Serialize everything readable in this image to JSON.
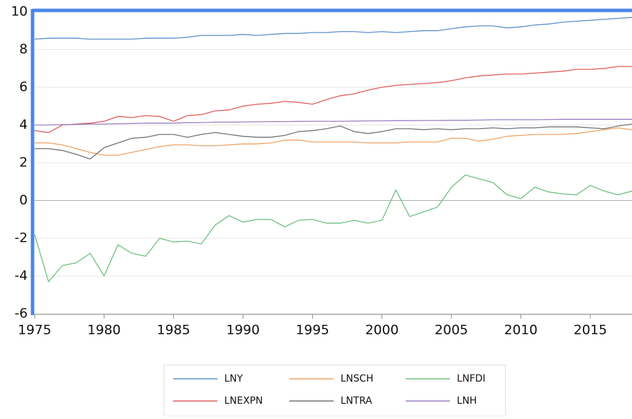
{
  "chart_data": {
    "type": "line",
    "x": [
      1975,
      1976,
      1977,
      1978,
      1979,
      1980,
      1981,
      1982,
      1983,
      1984,
      1985,
      1986,
      1987,
      1988,
      1989,
      1990,
      1991,
      1992,
      1993,
      1994,
      1995,
      1996,
      1997,
      1998,
      1999,
      2000,
      2001,
      2002,
      2003,
      2004,
      2005,
      2006,
      2007,
      2008,
      2009,
      2010,
      2011,
      2012,
      2013,
      2014,
      2015,
      2016,
      2017,
      2018
    ],
    "xlim": [
      1975,
      2018
    ],
    "xticks": [
      1975,
      1980,
      1985,
      1990,
      1995,
      2000,
      2005,
      2010,
      2015
    ],
    "ylim": [
      -6,
      10
    ],
    "yticks": [
      -6,
      -4,
      -2,
      0,
      2,
      4,
      6,
      8,
      10
    ],
    "grid": true,
    "legend": "bottom",
    "series": [
      {
        "name": "LNY",
        "color": "#5b8ec9",
        "values": [
          8.55,
          8.6,
          8.6,
          8.6,
          8.55,
          8.55,
          8.55,
          8.55,
          8.6,
          8.6,
          8.6,
          8.65,
          8.75,
          8.75,
          8.75,
          8.8,
          8.75,
          8.8,
          8.85,
          8.85,
          8.9,
          8.9,
          8.95,
          8.95,
          8.9,
          8.95,
          8.9,
          8.95,
          9.0,
          9.0,
          9.1,
          9.2,
          9.25,
          9.25,
          9.15,
          9.2,
          9.3,
          9.35,
          9.45,
          9.5,
          9.55,
          9.6,
          9.65,
          9.7
        ]
      },
      {
        "name": "LNSCH",
        "color": "#f0a060",
        "values": [
          3.05,
          3.05,
          2.95,
          2.75,
          2.55,
          2.4,
          2.4,
          2.55,
          2.7,
          2.85,
          2.95,
          2.95,
          2.9,
          2.9,
          2.95,
          3.0,
          3.0,
          3.05,
          3.2,
          3.2,
          3.1,
          3.1,
          3.1,
          3.1,
          3.05,
          3.05,
          3.05,
          3.1,
          3.1,
          3.1,
          3.3,
          3.3,
          3.15,
          3.25,
          3.4,
          3.45,
          3.5,
          3.5,
          3.5,
          3.55,
          3.65,
          3.75,
          3.85,
          3.75
        ]
      },
      {
        "name": "LNFDI",
        "color": "#6cbf7f",
        "values": [
          -1.8,
          -4.3,
          -3.45,
          -3.3,
          -2.8,
          -4.0,
          -2.35,
          -2.8,
          -2.95,
          -2.0,
          -2.2,
          -2.15,
          -2.3,
          -1.3,
          -0.8,
          -1.15,
          -1.0,
          -1.0,
          -1.4,
          -1.05,
          -1.0,
          -1.2,
          -1.2,
          -1.05,
          -1.2,
          -1.05,
          0.55,
          -0.85,
          -0.6,
          -0.35,
          0.7,
          1.35,
          1.15,
          0.95,
          0.3,
          0.1,
          0.7,
          0.45,
          0.35,
          0.3,
          0.8,
          0.5,
          0.3,
          0.5
        ]
      },
      {
        "name": "LNEXPN",
        "color": "#e05b5b",
        "values": [
          3.7,
          3.6,
          4.0,
          4.05,
          4.1,
          4.2,
          4.45,
          4.4,
          4.5,
          4.45,
          4.2,
          4.5,
          4.55,
          4.75,
          4.8,
          5.0,
          5.1,
          5.15,
          5.25,
          5.2,
          5.1,
          5.35,
          5.55,
          5.65,
          5.85,
          6.0,
          6.1,
          6.15,
          6.2,
          6.25,
          6.35,
          6.5,
          6.6,
          6.65,
          6.7,
          6.7,
          6.75,
          6.8,
          6.85,
          6.95,
          6.95,
          7.0,
          7.1,
          7.1
        ]
      },
      {
        "name": "LNTRA",
        "color": "#707070",
        "values": [
          2.75,
          2.75,
          2.65,
          2.45,
          2.2,
          2.8,
          3.05,
          3.3,
          3.35,
          3.5,
          3.5,
          3.35,
          3.5,
          3.6,
          3.5,
          3.4,
          3.35,
          3.35,
          3.45,
          3.65,
          3.7,
          3.8,
          3.95,
          3.65,
          3.55,
          3.65,
          3.8,
          3.8,
          3.75,
          3.8,
          3.75,
          3.8,
          3.8,
          3.85,
          3.8,
          3.85,
          3.85,
          3.9,
          3.9,
          3.9,
          3.85,
          3.8,
          3.95,
          4.05
        ]
      },
      {
        "name": "LNH",
        "color": "#9a7fc0",
        "values": [
          4.0,
          4.0,
          4.02,
          4.03,
          4.05,
          4.05,
          4.07,
          4.08,
          4.1,
          4.1,
          4.1,
          4.12,
          4.13,
          4.15,
          4.15,
          4.16,
          4.17,
          4.18,
          4.18,
          4.19,
          4.2,
          4.2,
          4.2,
          4.21,
          4.22,
          4.22,
          4.23,
          4.23,
          4.24,
          4.24,
          4.25,
          4.25,
          4.26,
          4.28,
          4.28,
          4.28,
          4.28,
          4.29,
          4.3,
          4.3,
          4.3,
          4.3,
          4.3,
          4.3
        ]
      }
    ]
  }
}
